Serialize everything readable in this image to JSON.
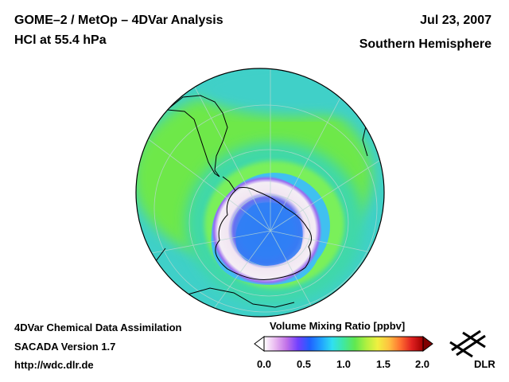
{
  "header": {
    "title": "GOME–2 / MetOp – 4DVar Analysis",
    "subtitle": "HCl at 55.4 hPa",
    "date": "Jul 23, 2007",
    "region": "Southern Hemisphere"
  },
  "footer": {
    "line1": "4DVar Chemical Data Assimilation",
    "line2": "SACADA Version 1.7",
    "line3": "http://wdc.dlr.de"
  },
  "colorbar": {
    "title": "Volume Mixing Ratio [ppbv]",
    "ticks": [
      "0.0",
      "0.5",
      "1.0",
      "1.5",
      "2.0"
    ],
    "colors": [
      "#ffffff",
      "#e8b8f0",
      "#c070e8",
      "#7040ff",
      "#2060ff",
      "#20a0ff",
      "#30e0f0",
      "#40e8a0",
      "#60e850",
      "#b0f040",
      "#f0f040",
      "#ffc040",
      "#ff7030",
      "#e02020",
      "#a00000"
    ]
  },
  "map": {
    "palette": {
      "ocean_bg": "#3fd0c8",
      "ring_teal": "#40d8a8",
      "band_green": "#6ee84a",
      "vortex_white": "#f2e6f2",
      "vortex_purple": "#8a6cf0",
      "core_blue": "#2f7cf4",
      "coast": "#000000"
    }
  },
  "logo": {
    "label": "DLR"
  }
}
